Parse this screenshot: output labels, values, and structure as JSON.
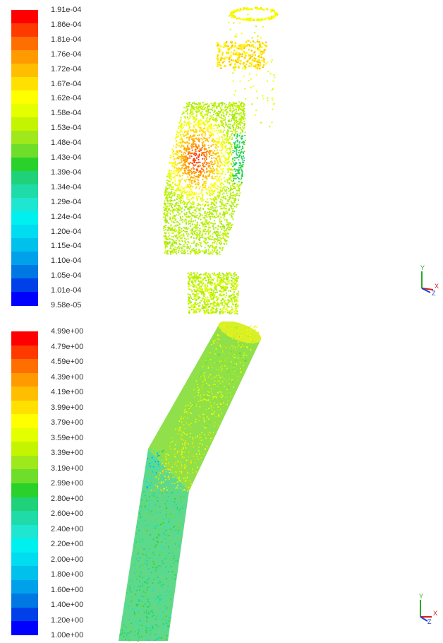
{
  "colormap": [
    "#ff0000",
    "#ff3a00",
    "#ff6e00",
    "#ff9a00",
    "#ffbe00",
    "#ffe000",
    "#ffff00",
    "#e4ff00",
    "#c4f400",
    "#9ee81c",
    "#6ede2a",
    "#2ad12a",
    "#1fd27a",
    "#1fdba8",
    "#1fe6d0",
    "#00f0f0",
    "#00dcf0",
    "#00c0ec",
    "#00a0ea",
    "#0078e4",
    "#0040e8",
    "#0000ff"
  ],
  "legend_top": {
    "labels": [
      "1.91e-04",
      "1.86e-04",
      "1.81e-04",
      "1.76e-04",
      "1.72e-04",
      "1.67e-04",
      "1.62e-04",
      "1.58e-04",
      "1.53e-04",
      "1.48e-04",
      "1.43e-04",
      "1.39e-04",
      "1.34e-04",
      "1.29e-04",
      "1.24e-04",
      "1.20e-04",
      "1.15e-04",
      "1.10e-04",
      "1.05e-04",
      "1.01e-04",
      "9.58e-05"
    ]
  },
  "legend_bottom": {
    "labels": [
      "4.99e+00",
      "4.79e+00",
      "4.59e+00",
      "4.39e+00",
      "4.19e+00",
      "3.99e+00",
      "3.79e+00",
      "3.59e+00",
      "3.39e+00",
      "3.19e+00",
      "2.99e+00",
      "2.80e+00",
      "2.60e+00",
      "2.40e+00",
      "2.20e+00",
      "2.00e+00",
      "1.80e+00",
      "1.60e+00",
      "1.40e+00",
      "1.20e+00",
      "1.00e+00"
    ]
  },
  "triad_top": {
    "y": "Y",
    "x": "X",
    "z": "Z"
  },
  "triad_bottom": {
    "y": "Y",
    "x": "X",
    "z": "Z"
  }
}
